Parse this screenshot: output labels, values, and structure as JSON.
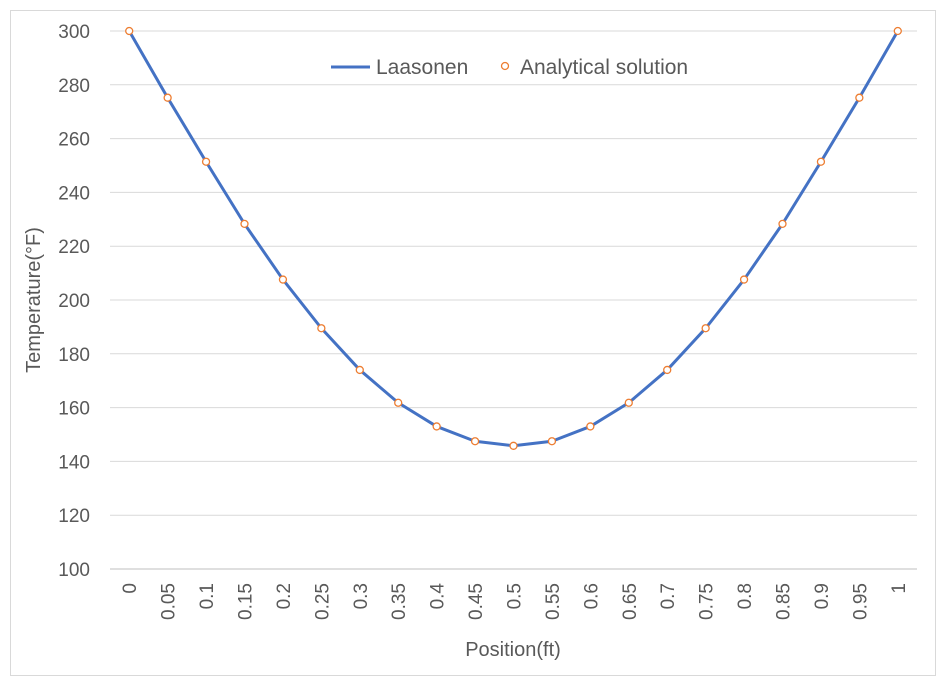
{
  "chart_data": {
    "type": "line",
    "xlabel": "Position(ft)",
    "ylabel": "Temperature(°F)",
    "ylim": [
      100,
      300
    ],
    "ytick_step": 20,
    "x_tick_labels": [
      "0",
      "0.05",
      "0.1",
      "0.15",
      "0.2",
      "0.25",
      "0.3",
      "0.35",
      "0.4",
      "0.45",
      "0.5",
      "0.55",
      "0.6",
      "0.65",
      "0.7",
      "0.75",
      "0.8",
      "0.85",
      "0.9",
      "0.95",
      "1"
    ],
    "x": [
      0,
      0.05,
      0.1,
      0.15,
      0.2,
      0.25,
      0.3,
      0.35,
      0.4,
      0.45,
      0.5,
      0.55,
      0.6,
      0.65,
      0.7,
      0.75,
      0.8,
      0.85,
      0.9,
      0.95,
      1
    ],
    "grid": true,
    "legend_position": "top-center",
    "series": [
      {
        "name": "Laasonen",
        "style": "line",
        "color": "#4472c4",
        "values": [
          300,
          275.2,
          251.4,
          228.3,
          207.6,
          189.5,
          174.0,
          161.8,
          153.0,
          147.5,
          145.8,
          147.5,
          153.0,
          161.8,
          174.0,
          189.5,
          207.6,
          228.3,
          251.4,
          275.2,
          300
        ]
      },
      {
        "name": "Analytical solution",
        "style": "markers",
        "color": "#ed7d31",
        "values": [
          300,
          275.2,
          251.4,
          228.3,
          207.6,
          189.5,
          174.0,
          161.8,
          153.0,
          147.5,
          145.8,
          147.5,
          153.0,
          161.8,
          174.0,
          189.5,
          207.6,
          228.3,
          251.4,
          275.2,
          300
        ]
      }
    ]
  }
}
